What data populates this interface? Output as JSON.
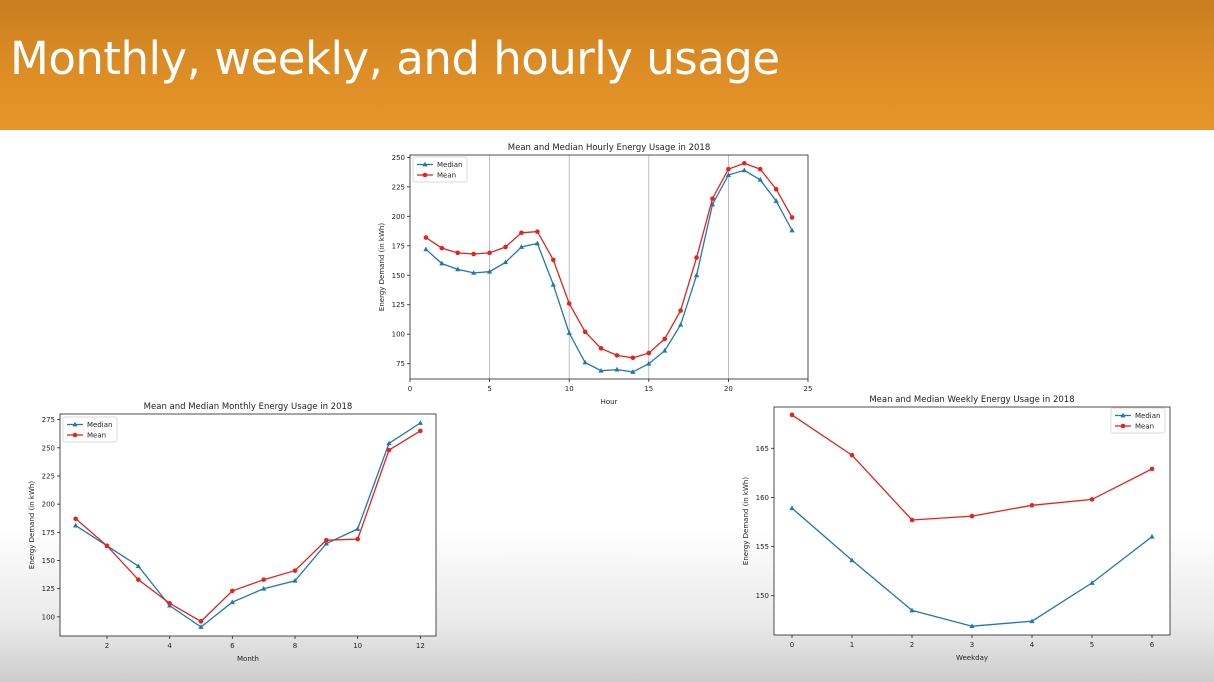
{
  "slide": {
    "title": "Monthly, weekly, and hourly usage"
  },
  "colors": {
    "header": "#de8d26",
    "median": "#1f77b4",
    "mean": "#e8221b"
  },
  "chart_data": [
    {
      "id": "hourly",
      "type": "line",
      "title": "Mean and Median Hourly Energy Usage in 2018",
      "xlabel": "Hour",
      "ylabel": "Energy Demand (in kWh)",
      "xlim": [
        0,
        25
      ],
      "ylim": [
        62,
        252
      ],
      "xticks": [
        0,
        5,
        10,
        15,
        20,
        25
      ],
      "yticks": [
        75,
        100,
        125,
        150,
        175,
        200,
        225,
        250
      ],
      "grid": "x-major-lines",
      "legend": "upper-left",
      "x": [
        1,
        2,
        3,
        4,
        5,
        6,
        7,
        8,
        9,
        10,
        11,
        12,
        13,
        14,
        15,
        16,
        17,
        18,
        19,
        20,
        21,
        22,
        23,
        24
      ],
      "series": [
        {
          "name": "Median",
          "marker": "triangle",
          "color": "#1f77b4",
          "values": [
            172,
            160,
            155,
            152,
            153,
            161,
            174,
            177,
            142,
            101,
            76,
            69,
            70,
            68,
            75,
            86,
            108,
            150,
            210,
            235,
            239,
            231,
            213,
            188
          ]
        },
        {
          "name": "Mean",
          "marker": "circle",
          "color": "#e8221b",
          "values": [
            182,
            173,
            169,
            168,
            169,
            174,
            186,
            187,
            163,
            126,
            102,
            88,
            82,
            80,
            84,
            96,
            120,
            165,
            215,
            240,
            245,
            240,
            223,
            199
          ]
        }
      ]
    },
    {
      "id": "monthly",
      "type": "line",
      "title": "Mean and Median Monthly Energy Usage in 2018",
      "xlabel": "Month",
      "ylabel": "Energy Demand (in kWh)",
      "xlim": [
        0.5,
        12.5
      ],
      "ylim": [
        83,
        280
      ],
      "xticks": [
        2,
        4,
        6,
        8,
        10,
        12
      ],
      "yticks": [
        100,
        125,
        150,
        175,
        200,
        225,
        250,
        275
      ],
      "grid": "none",
      "legend": "upper-left",
      "x": [
        1,
        2,
        3,
        4,
        5,
        6,
        7,
        8,
        9,
        10,
        11,
        12
      ],
      "series": [
        {
          "name": "Median",
          "marker": "triangle",
          "color": "#1f77b4",
          "values": [
            181,
            163,
            145,
            110,
            91,
            113,
            125,
            132,
            165,
            178,
            254,
            272
          ]
        },
        {
          "name": "Mean",
          "marker": "circle",
          "color": "#e8221b",
          "values": [
            187,
            163,
            133,
            112,
            96,
            123,
            133,
            141,
            168,
            169,
            248,
            265
          ]
        }
      ]
    },
    {
      "id": "weekly",
      "type": "line",
      "title": "Mean and Median Weekly Energy Usage in 2018",
      "xlabel": "Weekday",
      "ylabel": "Energy Demand (in kWh)",
      "xlim": [
        -0.3,
        6.3
      ],
      "ylim": [
        146,
        169.2
      ],
      "xticks": [
        0,
        1,
        2,
        3,
        4,
        5,
        6
      ],
      "yticks": [
        150,
        155,
        160,
        165
      ],
      "grid": "none",
      "legend": "upper-right",
      "x": [
        0,
        1,
        2,
        3,
        4,
        5,
        6
      ],
      "series": [
        {
          "name": "Median",
          "marker": "triangle",
          "color": "#1f77b4",
          "values": [
            158.9,
            153.6,
            148.5,
            146.9,
            147.4,
            151.3,
            156.0
          ]
        },
        {
          "name": "Mean",
          "marker": "circle",
          "color": "#e8221b",
          "values": [
            168.4,
            164.3,
            157.7,
            158.1,
            159.2,
            159.8,
            162.9
          ]
        }
      ]
    }
  ]
}
